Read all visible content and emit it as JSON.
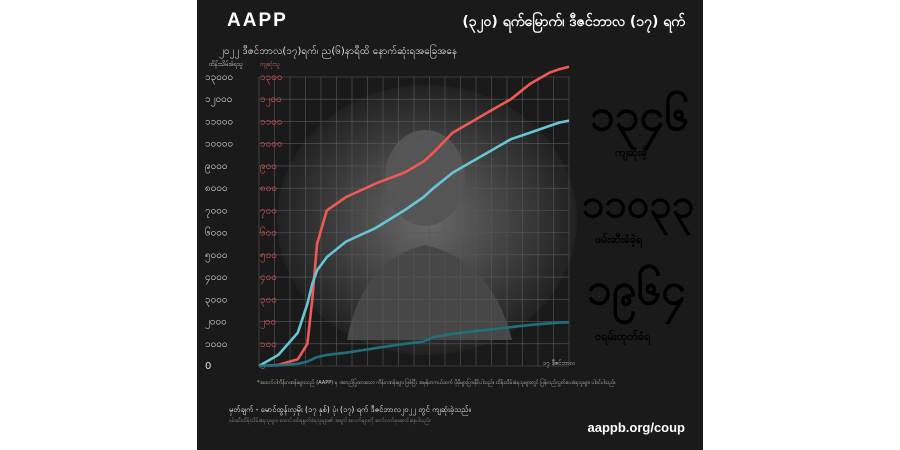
{
  "brand": {
    "logo": "AAPP"
  },
  "header": {
    "headline": "(၃၂၀) ရက်မြောက်၊ ဒီဇင်ဘာလ (၁၇) ရက်",
    "subtitle": "၂၀၂၂ ဒီဇင်ဘာလ(၁၇)ရက်၊ ည(၆)နာရီထိ နောက်ဆုံးရအခြေအနေ"
  },
  "axis_captions": {
    "left": "ထိန်းသိမ်းခံရသူ",
    "right": "ကျဆုံးသူ"
  },
  "stats": [
    {
      "value": "၁၃၄၆",
      "label": "ကျဆုံးခဲ့",
      "color": "#f05a55"
    },
    {
      "value": "၁၁၀၃၃",
      "label": "ဖမ်းဆီးခံခဲ့ရ",
      "color": "#67c5d8"
    },
    {
      "value": "၁၉၆၄",
      "label": "ဝရမ်းထုတ်ခံရ",
      "color": "#2a8e9c"
    }
  ],
  "footnote": "*အထက်ပါကိန်းဂဏန်းများသည် (AAPP) မှ အတည်ပြုထားသော ကိန်းဂဏန်းများ ဖြစ်ပြီး အမှန်တကယ်ထက် ပိုမိုများပြားနိုင်ပါသည်။ ထိန်းသိမ်းခံရသူများတွင် ပြန်လည်လွှတ်ပေးခံရသူများ ပါဝင်ပါသည်။",
  "source": "မှတ်ချက် - မောင်ထွန်းလှမိုး (၁၇ နှစ်) ပုံ၊ (၁၇) ရက် ဒီဇင်ဘာလ၂၀၂၂ တွင် ကျဆုံးခဲ့သည်။",
  "note2": "ဖမ်းဆီးထိန်းသိမ်းခံရသူများ၊ ထောင်ဒဏ်ချမှတ်ခံရသူများ၏ အချက်အလက်များကို ဆက်လက်စုဆောင်းနေပါသည်။",
  "url": "aappb.org/coup",
  "x_end_label": "၁၇ ဒီဇင်ဘာလ",
  "colors": {
    "killed": "#f05a55",
    "arrested": "#67c5d8",
    "warrants": "#1f6f7c",
    "background": "#1a1a1a",
    "grid": "#5a5a5a"
  },
  "chart_data": {
    "type": "line",
    "x": [
      0,
      20,
      40,
      50,
      55,
      60,
      70,
      90,
      120,
      150,
      170,
      180,
      200,
      220,
      240,
      260,
      280,
      300,
      310,
      320
    ],
    "xlim": [
      0,
      320
    ],
    "ylim_left": [
      0,
      13000
    ],
    "ylim_right": [
      0,
      1300
    ],
    "yticks_left": [
      "0",
      "၁၀၀၀",
      "၂၀၀၀",
      "၃၀၀၀",
      "၄၀၀၀",
      "၅၀၀၀",
      "၆၀၀၀",
      "၇၀၀၀",
      "၈၀၀၀",
      "၉၀၀၀",
      "၁၀၀၀၀",
      "၁၁၀၀၀",
      "၁၂၀၀၀",
      "၁၃၀၀၀"
    ],
    "yticks_right": [
      "၀",
      "၁၀၀",
      "၂၀၀",
      "၃၀၀",
      "၄၀၀",
      "၅၀၀",
      "၆၀၀",
      "၇၀၀",
      "၈၀၀",
      "၉၀၀",
      "၁၀၀၀",
      "၁၁၀၀",
      "၁၂၀၀",
      "၁၃၀၀"
    ],
    "grid": true,
    "series": [
      {
        "axis": "right",
        "values": [
          0,
          5,
          30,
          100,
          300,
          550,
          700,
          760,
          820,
          870,
          920,
          960,
          1050,
          1100,
          1150,
          1200,
          1270,
          1320,
          1335,
          1346
        ]
      },
      {
        "axis": "left",
        "values": [
          0,
          500,
          1500,
          2800,
          3700,
          4300,
          4900,
          5600,
          6200,
          7000,
          7600,
          8000,
          8700,
          9200,
          9700,
          10200,
          10500,
          10800,
          10950,
          11033
        ]
      },
      {
        "axis": "left",
        "values": [
          0,
          30,
          100,
          200,
          300,
          400,
          500,
          600,
          800,
          1000,
          1100,
          1300,
          1450,
          1550,
          1650,
          1750,
          1850,
          1920,
          1950,
          1964
        ]
      }
    ]
  }
}
